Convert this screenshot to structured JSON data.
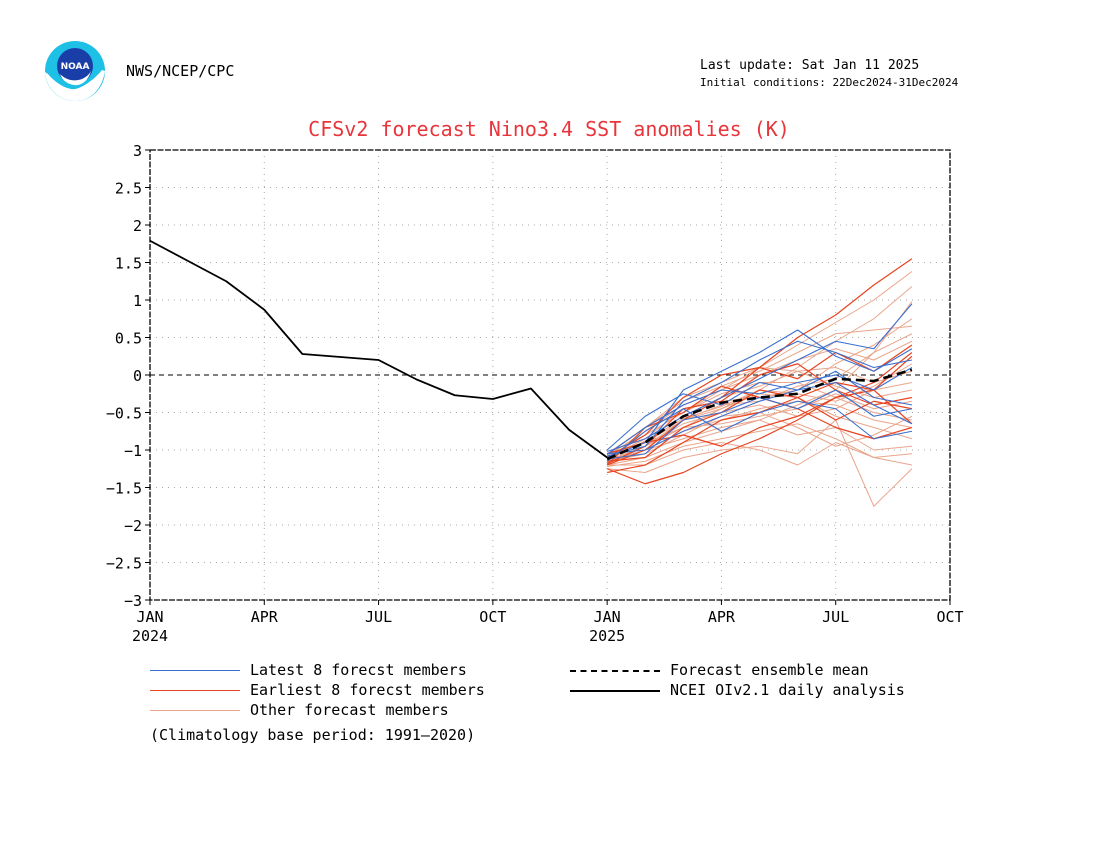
{
  "header": {
    "agency": "NWS/NCEP/CPC",
    "last_update": "Last update: Sat Jan 11 2025",
    "initial_conditions": "Initial conditions: 22Dec2024-31Dec2024",
    "logo_text": "NOAA"
  },
  "colors": {
    "title": "#e8353b",
    "latest": "#3a6fcf",
    "earliest": "#e84420",
    "other": "#e9a68c",
    "observed": "#000000",
    "grid": "#aaaaaa"
  },
  "chart_data": {
    "type": "line",
    "title": "CFSv2 forecast Nino3.4 SST anomalies (K)",
    "xlim": [
      0,
      21
    ],
    "ylim": [
      -3,
      3
    ],
    "yticks": [
      3,
      2.5,
      2,
      1.5,
      1,
      0.5,
      0,
      -0.5,
      -1,
      -1.5,
      -2,
      -2.5,
      -3
    ],
    "ytick_labels": [
      "3",
      "2.5",
      "2",
      "1.5",
      "1",
      "0.5",
      "0",
      "−0.5",
      "−1",
      "−1.5",
      "−2",
      "−2.5",
      "−3"
    ],
    "xticks": [
      {
        "x": 0,
        "label": "JAN",
        "year": "2024"
      },
      {
        "x": 3,
        "label": "APR",
        "year": ""
      },
      {
        "x": 6,
        "label": "JUL",
        "year": ""
      },
      {
        "x": 9,
        "label": "OCT",
        "year": ""
      },
      {
        "x": 12,
        "label": "JAN",
        "year": "2025"
      },
      {
        "x": 15,
        "label": "APR",
        "year": ""
      },
      {
        "x": 18,
        "label": "JUL",
        "year": ""
      },
      {
        "x": 21,
        "label": "OCT",
        "year": ""
      }
    ],
    "grid": true,
    "zero_line": "dashed",
    "observed": {
      "name": "NCEI OIv2.1 daily analysis",
      "points": [
        [
          0,
          1.79
        ],
        [
          1,
          1.52
        ],
        [
          2,
          1.25
        ],
        [
          3,
          0.87
        ],
        [
          4,
          0.28
        ],
        [
          5,
          0.24
        ],
        [
          6,
          0.2
        ],
        [
          7,
          -0.06
        ],
        [
          8,
          -0.27
        ],
        [
          9,
          -0.32
        ],
        [
          10,
          -0.18
        ],
        [
          11,
          -0.73
        ],
        [
          12,
          -1.1
        ]
      ]
    },
    "ensemble_mean": {
      "name": "Forecast ensemble mean",
      "x": [
        12,
        13,
        14,
        15,
        16,
        17,
        18,
        19,
        20
      ],
      "values": [
        -1.12,
        -0.9,
        -0.55,
        -0.37,
        -0.3,
        -0.25,
        -0.05,
        -0.08,
        0.07
      ]
    },
    "members_x": [
      12,
      13,
      14,
      15,
      16,
      17,
      18,
      19,
      20
    ],
    "latest_members": {
      "name": "Latest 8 forecst members",
      "series": [
        [
          -1.02,
          -0.85,
          -0.55,
          -0.3,
          -0.05,
          0.2,
          0.45,
          0.35,
          0.95
        ],
        [
          -1.08,
          -0.95,
          -0.35,
          -0.1,
          0.2,
          0.45,
          0.3,
          0.1,
          0.2
        ],
        [
          -1.05,
          -1.0,
          -0.75,
          -0.55,
          -0.35,
          -0.2,
          -0.1,
          -0.4,
          -0.65
        ],
        [
          -1.1,
          -0.9,
          -0.2,
          0.05,
          0.3,
          0.6,
          0.25,
          0.05,
          0.35
        ],
        [
          -1.15,
          -0.75,
          -0.45,
          -0.75,
          -0.5,
          -0.35,
          -0.45,
          -0.85,
          -0.75
        ],
        [
          -1.0,
          -0.55,
          -0.25,
          -0.4,
          -0.1,
          -0.2,
          0.05,
          -0.3,
          -0.4
        ],
        [
          -1.12,
          -1.05,
          -0.6,
          -0.5,
          -0.3,
          -0.45,
          -0.2,
          -0.55,
          -0.45
        ],
        [
          -1.06,
          -0.7,
          -0.4,
          -0.2,
          -0.25,
          -0.1,
          0.0,
          -0.2,
          0.1
        ]
      ]
    },
    "earliest_members": {
      "name": "Earliest 8 forecst members",
      "series": [
        [
          -1.2,
          -1.0,
          -0.6,
          -0.3,
          0.1,
          0.5,
          0.8,
          1.2,
          1.55
        ],
        [
          -1.25,
          -1.45,
          -1.3,
          -1.05,
          -0.85,
          -0.6,
          -0.3,
          -0.1,
          0.3
        ],
        [
          -1.15,
          -1.1,
          -0.7,
          -0.5,
          -0.2,
          -0.3,
          -0.1,
          -0.2,
          -0.65
        ],
        [
          -1.1,
          -0.8,
          -0.3,
          0.0,
          0.1,
          -0.05,
          0.3,
          0.05,
          0.4
        ],
        [
          -1.3,
          -1.2,
          -0.9,
          -0.6,
          -0.5,
          -0.3,
          -0.6,
          -0.35,
          -0.45
        ],
        [
          -1.18,
          -0.95,
          -0.45,
          -0.35,
          0.0,
          0.15,
          -0.2,
          -0.4,
          -0.3
        ],
        [
          -1.05,
          -0.9,
          -0.8,
          -0.95,
          -0.7,
          -0.55,
          -0.3,
          -0.2,
          0.25
        ],
        [
          -1.2,
          -0.7,
          -0.5,
          -0.15,
          -0.3,
          -0.45,
          -0.7,
          -0.85,
          -0.7
        ]
      ]
    },
    "other_members": {
      "name": "Other forecast members",
      "series": [
        [
          -1.1,
          -0.8,
          -0.5,
          -0.2,
          0.1,
          0.4,
          0.7,
          1.0,
          1.38
        ],
        [
          -1.15,
          -0.95,
          -0.7,
          -0.45,
          -0.2,
          0.1,
          0.45,
          0.75,
          1.18
        ],
        [
          -1.2,
          -1.1,
          -0.9,
          -0.75,
          -0.6,
          -0.4,
          -0.2,
          0.3,
          0.98
        ],
        [
          -1.05,
          -0.7,
          -0.35,
          -0.15,
          0.05,
          0.3,
          0.55,
          0.6,
          0.65
        ],
        [
          -1.25,
          -1.3,
          -1.1,
          -1.0,
          -0.95,
          -1.05,
          -0.6,
          -1.75,
          -1.25
        ],
        [
          -1.2,
          -1.2,
          -1.0,
          -0.9,
          -1.0,
          -1.2,
          -0.9,
          -1.1,
          -1.05
        ],
        [
          -1.15,
          -1.0,
          -0.85,
          -0.7,
          -0.6,
          -0.8,
          -0.7,
          -1.0,
          -0.95
        ],
        [
          -1.1,
          -0.9,
          -0.6,
          -0.45,
          -0.25,
          -0.3,
          -0.55,
          -0.7,
          -0.85
        ],
        [
          -1.05,
          -0.8,
          -0.5,
          -0.25,
          -0.1,
          -0.1,
          -0.3,
          -0.5,
          -0.6
        ],
        [
          -1.12,
          -0.85,
          -0.55,
          -0.3,
          -0.15,
          0.05,
          -0.15,
          -0.3,
          -0.2
        ],
        [
          -1.18,
          -1.0,
          -0.75,
          -0.6,
          -0.45,
          -0.35,
          -0.4,
          -0.6,
          -0.7
        ],
        [
          -1.08,
          -0.75,
          -0.4,
          -0.2,
          0.0,
          0.2,
          0.35,
          0.2,
          0.45
        ],
        [
          -1.22,
          -1.15,
          -0.95,
          -0.85,
          -0.75,
          -0.65,
          -0.85,
          -1.1,
          -1.2
        ],
        [
          -1.1,
          -0.85,
          -0.45,
          -0.35,
          -0.3,
          -0.2,
          0.15,
          0.4,
          0.75
        ],
        [
          -1.14,
          -0.95,
          -0.65,
          -0.5,
          -0.4,
          -0.55,
          -0.45,
          -0.2,
          -0.1
        ],
        [
          -1.06,
          -0.7,
          -0.3,
          -0.1,
          0.1,
          0.05,
          0.1,
          -0.1,
          0.05
        ],
        [
          -1.16,
          -1.05,
          -0.8,
          -0.55,
          -0.5,
          -0.7,
          -0.95,
          -0.8,
          -0.55
        ],
        [
          -1.2,
          -0.95,
          -0.6,
          -0.4,
          -0.35,
          -0.15,
          -0.05,
          0.3,
          0.55
        ],
        [
          -1.1,
          -0.9,
          -0.7,
          -0.65,
          -0.55,
          -0.45,
          -0.25,
          -0.45,
          -0.35
        ],
        [
          -1.13,
          -0.88,
          -0.58,
          -0.42,
          -0.2,
          -0.25,
          -0.35,
          -0.15,
          0.15
        ]
      ]
    },
    "legend": [
      {
        "label": "Latest 8 forecst members",
        "style": "latest"
      },
      {
        "label": "Earliest 8 forecst members",
        "style": "earliest"
      },
      {
        "label": "Other forecast members",
        "style": "other"
      },
      {
        "label": "Forecast ensemble mean",
        "style": "mean"
      },
      {
        "label": "NCEI OIv2.1 daily analysis",
        "style": "observed"
      }
    ],
    "legend_placement": "bottom",
    "footnote": "(Climatology base period: 1991—2020)"
  }
}
